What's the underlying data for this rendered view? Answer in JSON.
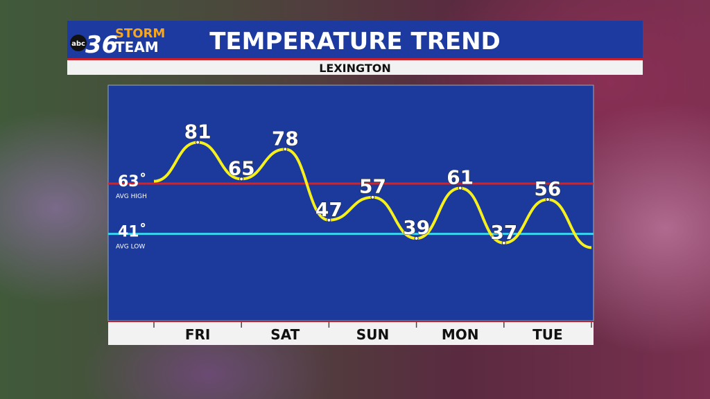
{
  "brand": {
    "network": "abc",
    "channel": "36",
    "line1": "STORM",
    "line2": "TEAM"
  },
  "chart_data": {
    "type": "line",
    "title": "TEMPERATURE TREND",
    "subtitle": "LEXINGTON",
    "x": [
      0,
      1,
      2,
      3,
      4,
      5,
      6,
      7,
      8,
      9,
      10
    ],
    "xlim": [
      0,
      10
    ],
    "xticks": [
      {
        "value": 1,
        "label": "FRI"
      },
      {
        "value": 3,
        "label": "SAT"
      },
      {
        "value": 5,
        "label": "SUN"
      },
      {
        "value": 7,
        "label": "MON"
      },
      {
        "value": 9,
        "label": "TUE"
      }
    ],
    "x_dividers": [
      0,
      2,
      4,
      6,
      8,
      10
    ],
    "ylim": [
      3,
      106
    ],
    "series": [
      {
        "name": "Temperature",
        "color": "#f5f01e",
        "values": [
          64,
          81,
          65,
          78,
          47,
          57,
          39,
          61,
          37,
          56,
          35
        ],
        "value_labels": [
          null,
          "81",
          "65",
          "78",
          "47",
          "57",
          "39",
          "61",
          "37",
          "56",
          null
        ]
      }
    ],
    "reference_lines": [
      {
        "value": 63,
        "label": "63˚",
        "sublabel": "AVG HIGH",
        "color": "#d2232a"
      },
      {
        "value": 41,
        "label": "41˚",
        "sublabel": "AVG LOW",
        "color": "#38d6f0"
      }
    ]
  }
}
